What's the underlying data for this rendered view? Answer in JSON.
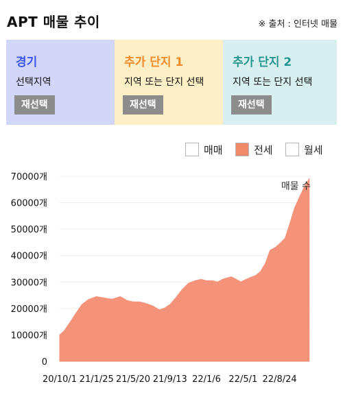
{
  "header": {
    "title": "APT 매물 추이",
    "source": "※ 출처 : 인터넷 매물"
  },
  "panels": [
    {
      "title": "경기",
      "subtitle": "선택지역",
      "button": "재선택",
      "title_color": "#3b55e6"
    },
    {
      "title": "추가 단지 1",
      "subtitle": "지역 또는 단지 선택",
      "button": "재선택",
      "title_color": "#f08a2c"
    },
    {
      "title": "추가 단지 2",
      "subtitle": "지역 또는 단지 선택",
      "button": "재선택",
      "title_color": "#26958f"
    }
  ],
  "legend": [
    {
      "label": "매매",
      "checked": false,
      "color": "#f08a6a"
    },
    {
      "label": "전세",
      "checked": true,
      "color": "#f08a6a"
    },
    {
      "label": "월세",
      "checked": false,
      "color": "#f08a6a"
    }
  ],
  "chart_data": {
    "type": "area",
    "title": "",
    "xlabel": "",
    "ylabel": "",
    "ylim": [
      0,
      70000
    ],
    "yticks": [
      "0",
      "10000개",
      "20000개",
      "30000개",
      "40000개",
      "50000개",
      "60000개",
      "70000개"
    ],
    "xticks": [
      "20/10/1",
      "21/1/25",
      "21/5/20",
      "21/9/13",
      "22/1/6",
      "22/5/1",
      "22/8/24"
    ],
    "xlim": [
      "2020-10-01",
      "2022-11-30"
    ],
    "annotation": "매물 수",
    "grid": true,
    "fill_color": "#f4937a",
    "series": [
      {
        "name": "",
        "x": [
          "2020-10-01",
          "2020-10-15",
          "2020-11-01",
          "2020-11-20",
          "2020-12-10",
          "2021-01-01",
          "2021-01-25",
          "2021-02-15",
          "2021-03-15",
          "2021-04-10",
          "2021-05-01",
          "2021-05-20",
          "2021-06-10",
          "2021-07-01",
          "2021-07-20",
          "2021-08-10",
          "2021-08-25",
          "2021-09-13",
          "2021-10-01",
          "2021-10-20",
          "2021-11-10",
          "2021-12-01",
          "2021-12-20",
          "2022-01-06",
          "2022-01-25",
          "2022-02-10",
          "2022-02-25",
          "2022-03-10",
          "2022-03-25",
          "2022-04-10",
          "2022-04-25",
          "2022-05-01",
          "2022-05-20",
          "2022-06-10",
          "2022-06-25",
          "2022-07-10",
          "2022-07-25",
          "2022-08-10",
          "2022-08-24",
          "2022-09-10",
          "2022-09-25",
          "2022-10-10",
          "2022-10-25",
          "2022-11-10",
          "2022-11-25"
        ],
        "y": [
          10000,
          11500,
          14500,
          18000,
          21500,
          23500,
          24500,
          24000,
          23500,
          24500,
          23000,
          22500,
          22500,
          21800,
          21000,
          19500,
          20000,
          21500,
          24000,
          27000,
          29500,
          30500,
          31000,
          30500,
          30500,
          30000,
          31000,
          31500,
          32000,
          31000,
          30000,
          30500,
          31500,
          32500,
          34000,
          37000,
          42000,
          43000,
          44500,
          46500,
          52000,
          58000,
          62000,
          66000,
          69000
        ]
      }
    ]
  }
}
